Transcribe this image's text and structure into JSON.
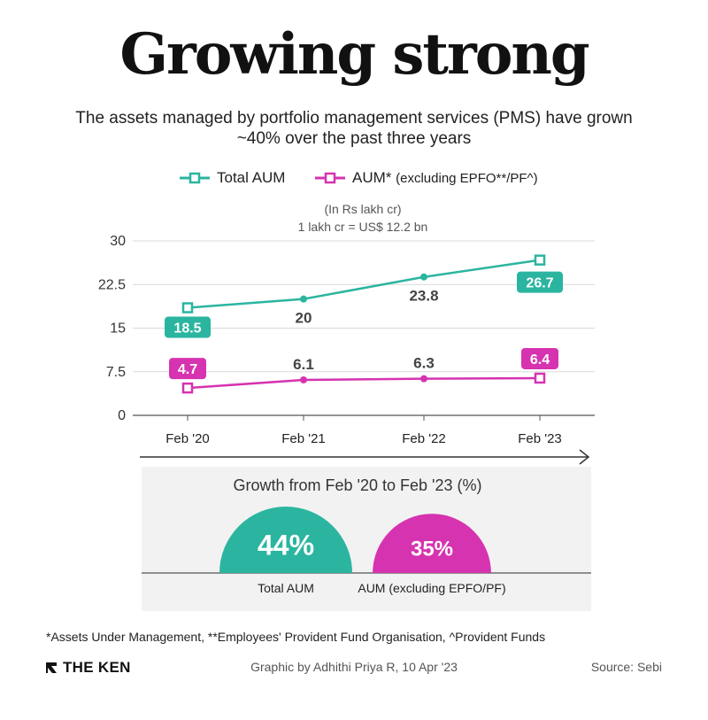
{
  "header": {
    "title": "Growing strong",
    "subtitle_line1": "The assets managed by portfolio management services (PMS) have grown",
    "subtitle_line2": "~40% over the past three years"
  },
  "legend": {
    "total_label": "Total AUM",
    "excl_label_main": "AUM*",
    "excl_label_sub": "(excluding EPFO**/PF^)"
  },
  "units": {
    "line1": "(In Rs lakh cr)",
    "line2": "1 lakh cr = US$ 12.2 bn"
  },
  "colors": {
    "teal": "#2bb5a0",
    "magenta": "#d633b0",
    "panel": "#f2f2f2",
    "grid": "#d9d9d9",
    "label_dark": "#444444"
  },
  "chart_data": [
    {
      "type": "line",
      "categories": [
        "Feb '20",
        "Feb '21",
        "Feb '22",
        "Feb '23"
      ],
      "series": [
        {
          "name": "Total AUM",
          "values": [
            18.5,
            20,
            23.8,
            26.7
          ],
          "labels": [
            "18.5",
            "20",
            "23.8",
            "26.7"
          ],
          "color": "#2bb5a0"
        },
        {
          "name": "AUM* (excluding EPFO**/PF^)",
          "values": [
            4.7,
            6.1,
            6.3,
            6.4
          ],
          "labels": [
            "4.7",
            "6.1",
            "6.3",
            "6.4"
          ],
          "color": "#d633b0"
        }
      ],
      "yticks": [
        "30",
        "22.5",
        "15",
        "7.5",
        "0"
      ],
      "ylim": [
        0,
        30
      ],
      "title": "",
      "xlabel": "",
      "ylabel": "(In Rs lakh cr)"
    },
    {
      "type": "pie",
      "title": "Growth from Feb '20 to Feb '23 (%)",
      "categories": [
        "Total AUM",
        "AUM (excluding EPFO/PF)"
      ],
      "values": [
        44,
        35
      ],
      "labels": [
        "44%",
        "35%"
      ],
      "unit": "%"
    }
  ],
  "footer": {
    "footnote": "*Assets Under Management, **Employees' Provident Fund Organisation, ^Provident Funds",
    "brand": "THE KEN",
    "credit": "Graphic by Adhithi Priya R, 10 Apr '23",
    "source": "Source: Sebi"
  }
}
